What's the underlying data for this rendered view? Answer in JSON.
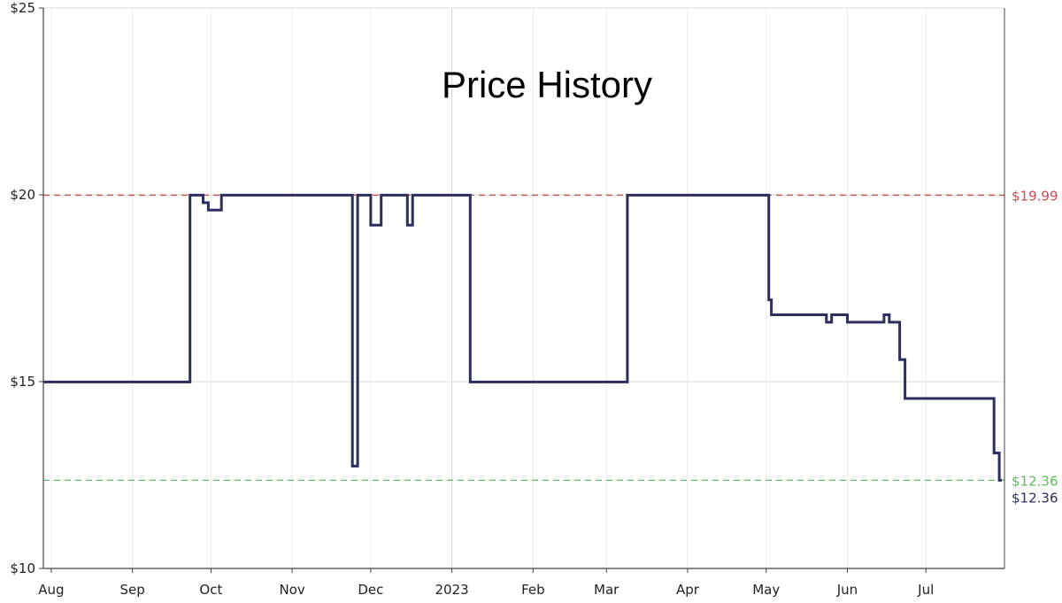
{
  "chart_data": {
    "type": "line",
    "title": "Price History",
    "xlabel": "",
    "ylabel": "",
    "ylim": [
      10,
      25
    ],
    "xlim": [
      "2022-07-29",
      "2023-07-31"
    ],
    "x_ticks": [
      {
        "label": "Aug",
        "date": "2022-08-01"
      },
      {
        "label": "Sep",
        "date": "2022-09-01"
      },
      {
        "label": "Oct",
        "date": "2022-10-01"
      },
      {
        "label": "Nov",
        "date": "2022-11-01"
      },
      {
        "label": "Dec",
        "date": "2022-12-01"
      },
      {
        "label": "2023",
        "date": "2023-01-01"
      },
      {
        "label": "Feb",
        "date": "2023-02-01"
      },
      {
        "label": "Mar",
        "date": "2023-03-01"
      },
      {
        "label": "Apr",
        "date": "2023-04-01"
      },
      {
        "label": "May",
        "date": "2023-05-01"
      },
      {
        "label": "Jun",
        "date": "2023-06-01"
      },
      {
        "label": "Jul",
        "date": "2023-07-01"
      }
    ],
    "y_ticks": [
      {
        "label": "$10",
        "value": 10
      },
      {
        "label": "$15",
        "value": 15
      },
      {
        "label": "$20",
        "value": 20
      },
      {
        "label": "$25",
        "value": 25
      }
    ],
    "grid": true,
    "step": "post",
    "series": [
      {
        "color": "#2d2d5e",
        "points": [
          {
            "x": "2022-07-29",
            "y": 14.99
          },
          {
            "x": "2022-09-23",
            "y": 19.99
          },
          {
            "x": "2022-09-28",
            "y": 19.79
          },
          {
            "x": "2022-09-30",
            "y": 19.59
          },
          {
            "x": "2022-10-05",
            "y": 19.99
          },
          {
            "x": "2022-11-24",
            "y": 12.74
          },
          {
            "x": "2022-11-26",
            "y": 19.99
          },
          {
            "x": "2022-12-01",
            "y": 19.19
          },
          {
            "x": "2022-12-05",
            "y": 19.99
          },
          {
            "x": "2022-12-15",
            "y": 19.19
          },
          {
            "x": "2022-12-17",
            "y": 19.99
          },
          {
            "x": "2023-01-08",
            "y": 14.99
          },
          {
            "x": "2023-03-09",
            "y": 19.99
          },
          {
            "x": "2023-05-02",
            "y": 17.19
          },
          {
            "x": "2023-05-03",
            "y": 16.79
          },
          {
            "x": "2023-05-24",
            "y": 16.59
          },
          {
            "x": "2023-05-26",
            "y": 16.79
          },
          {
            "x": "2023-06-01",
            "y": 16.59
          },
          {
            "x": "2023-06-15",
            "y": 16.79
          },
          {
            "x": "2023-06-17",
            "y": 16.59
          },
          {
            "x": "2023-06-21",
            "y": 15.59
          },
          {
            "x": "2023-06-23",
            "y": 14.55
          },
          {
            "x": "2023-07-27",
            "y": 13.09
          },
          {
            "x": "2023-07-29",
            "y": 12.36
          },
          {
            "x": "2023-07-30",
            "y": 12.36
          }
        ]
      }
    ],
    "reference_lines": [
      {
        "value": 19.99,
        "label": "$19.99",
        "color": "#d04a4a",
        "style": "dashed"
      },
      {
        "value": 12.36,
        "label": "$12.36",
        "color": "#5cbf5c",
        "style": "dashed"
      }
    ],
    "end_label": {
      "value": 12.36,
      "label": "$12.36",
      "color": "#2d2d5e"
    }
  }
}
